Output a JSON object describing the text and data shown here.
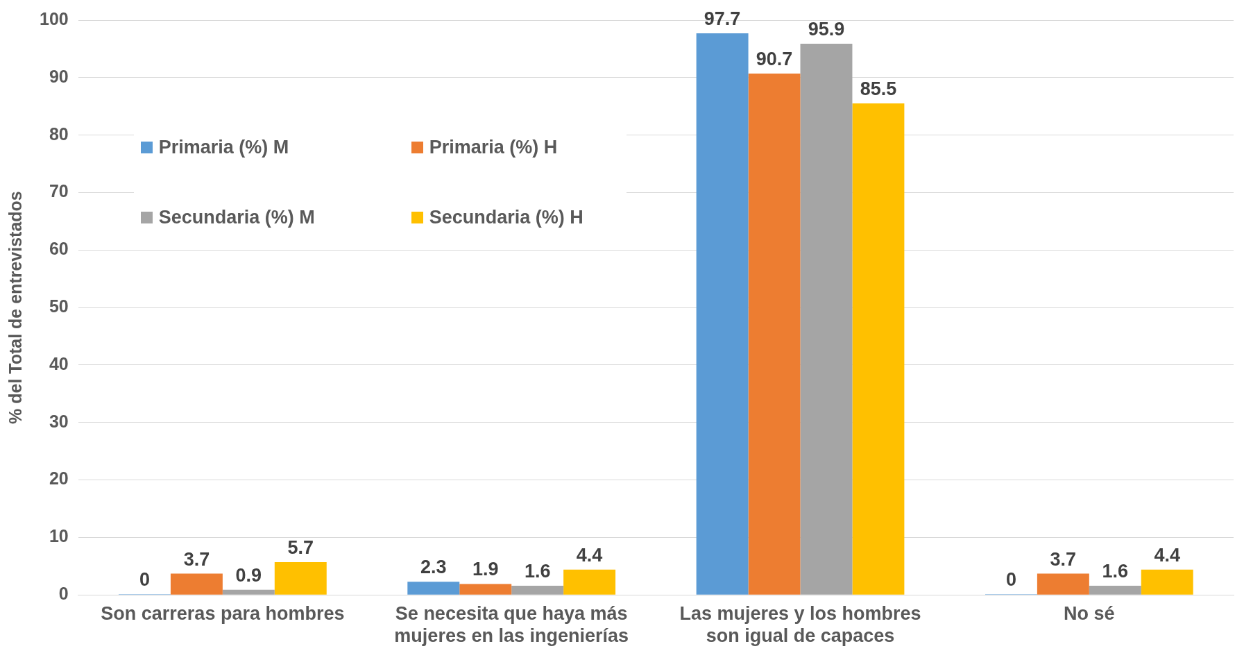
{
  "chart_data": {
    "type": "bar",
    "ylabel": "% del Total de entrevistados",
    "categories": [
      "Son carreras para hombres",
      "Se necesita que haya más mujeres en las ingenierías",
      "Las mujeres y los hombres son igual de capaces",
      "No sé"
    ],
    "series": [
      {
        "name": "Primaria (%) M",
        "color": "#5b9bd5",
        "values": [
          0,
          2.3,
          97.7,
          0
        ]
      },
      {
        "name": "Primaria (%) H",
        "color": "#ed7d31",
        "values": [
          3.7,
          1.9,
          90.7,
          3.7
        ]
      },
      {
        "name": "Secundaria (%) M",
        "color": "#a5a5a5",
        "values": [
          0.9,
          1.6,
          95.9,
          1.6
        ]
      },
      {
        "name": "Secundaria (%) H",
        "color": "#ffc000",
        "values": [
          5.7,
          4.4,
          85.5,
          4.4
        ]
      }
    ],
    "ylim": [
      0,
      100
    ],
    "yticks": [
      0,
      10,
      20,
      30,
      40,
      50,
      60,
      70,
      80,
      90,
      100
    ],
    "grid": "y",
    "legend": "top left",
    "data_labels": true
  }
}
